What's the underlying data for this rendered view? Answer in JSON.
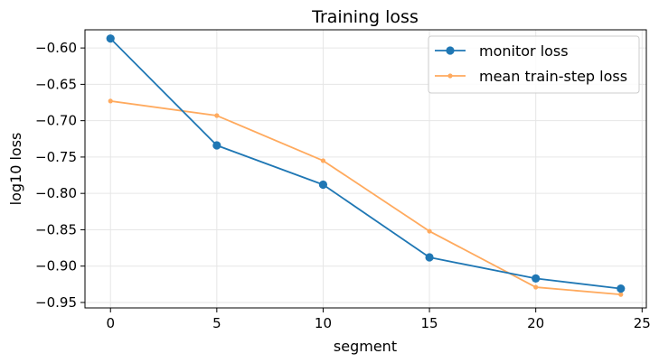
{
  "chart_data": {
    "type": "line",
    "title": "Training loss",
    "xlabel": "segment",
    "ylabel": "log10 loss",
    "xlim": [
      -1.2,
      25.2
    ],
    "ylim": [
      -0.9575,
      -0.575
    ],
    "xticks": [
      0,
      5,
      10,
      15,
      20,
      25
    ],
    "yticks": [
      -0.6,
      -0.65,
      -0.7,
      -0.75,
      -0.8,
      -0.85,
      -0.9,
      -0.95
    ],
    "xtick_labels": [
      "0",
      "5",
      "10",
      "15",
      "20",
      "25"
    ],
    "ytick_labels": [
      "−0.60",
      "−0.65",
      "−0.70",
      "−0.75",
      "−0.80",
      "−0.85",
      "−0.90",
      "−0.95"
    ],
    "grid": true,
    "legend": "top-right",
    "series": [
      {
        "name": "monitor loss",
        "color": "#1f77b4",
        "marker": "circle-large",
        "x": [
          0,
          5,
          10,
          15,
          20,
          24
        ],
        "y": [
          -0.587,
          -0.734,
          -0.788,
          -0.888,
          -0.917,
          -0.931
        ]
      },
      {
        "name": "mean train-step loss",
        "color": "#ffaa5e",
        "marker": "circle-small",
        "x": [
          0,
          5,
          10,
          15,
          20,
          24
        ],
        "y": [
          -0.673,
          -0.693,
          -0.755,
          -0.852,
          -0.929,
          -0.939
        ]
      }
    ]
  }
}
